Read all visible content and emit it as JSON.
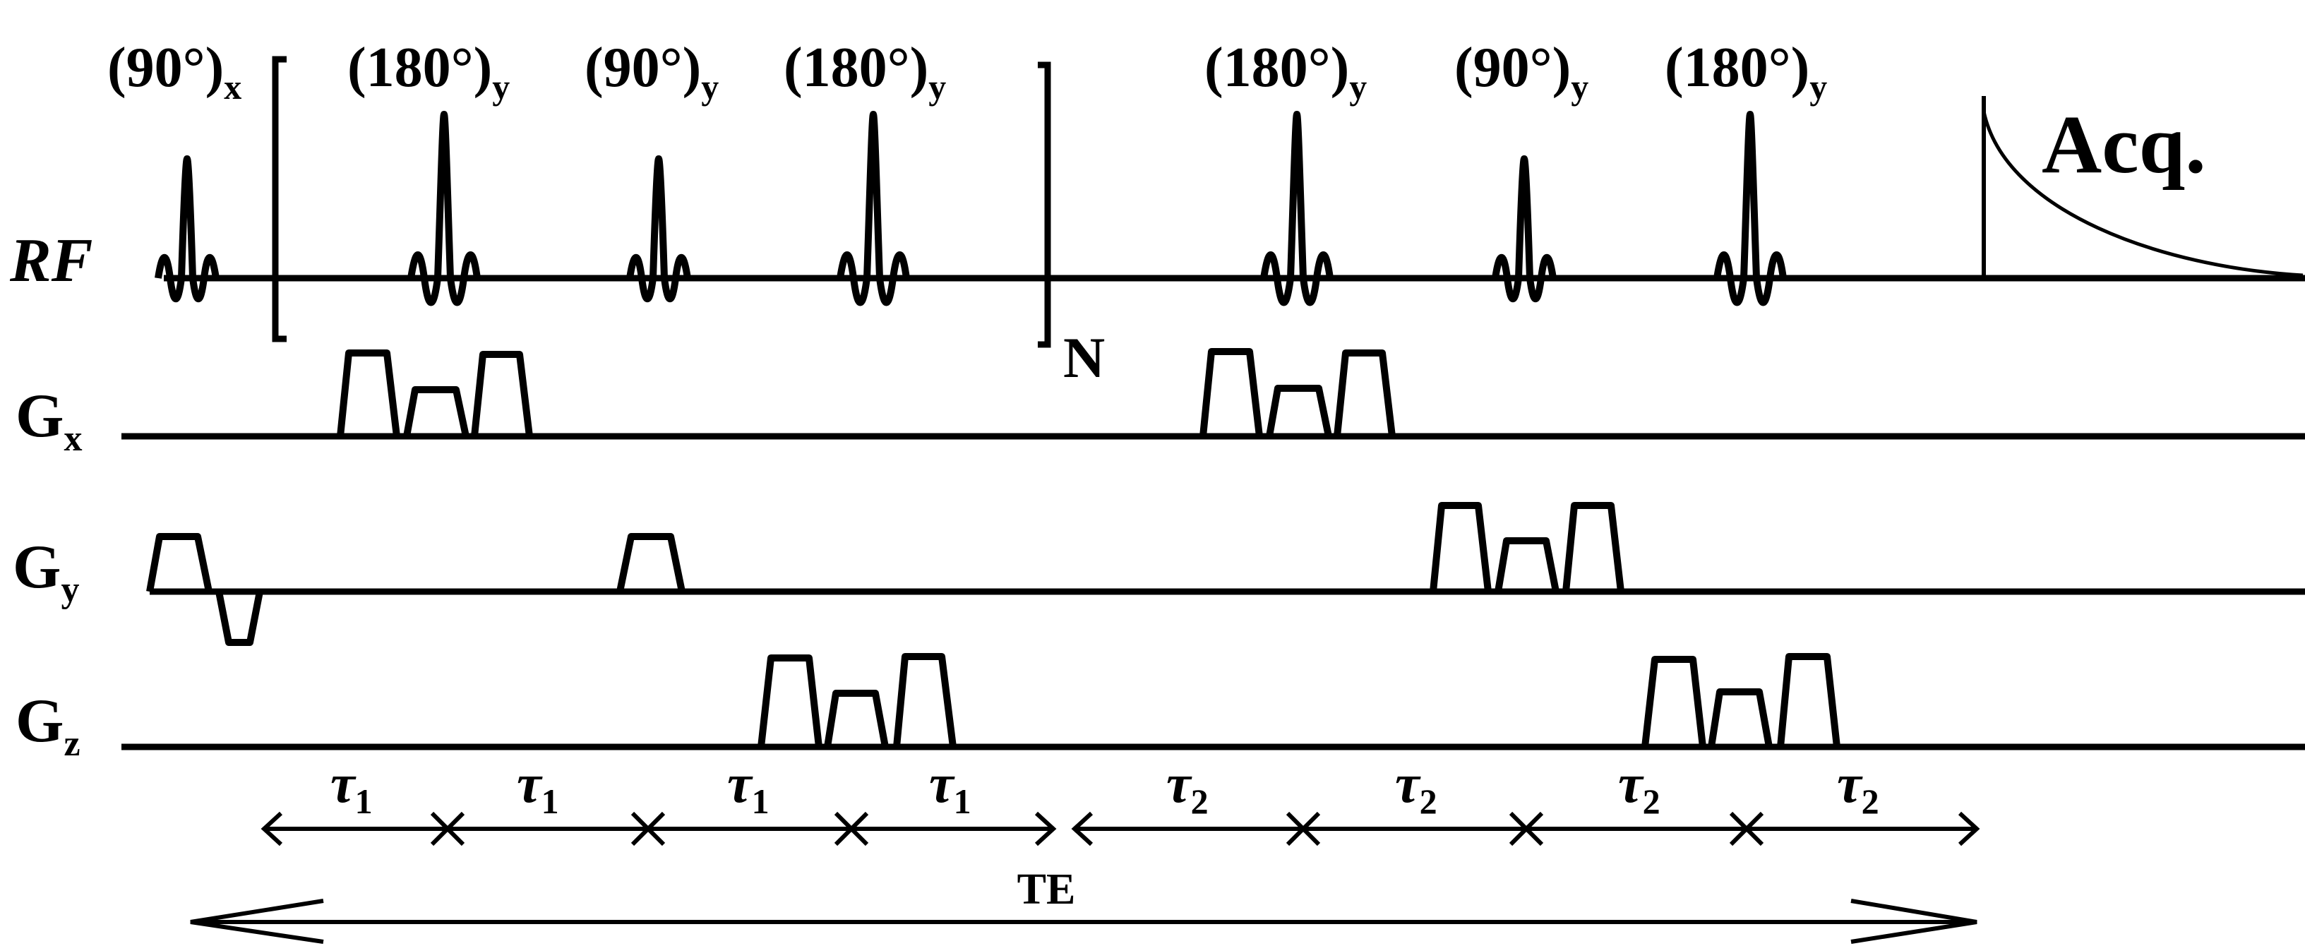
{
  "pulse_labels": [
    {
      "base": "(90°)",
      "sub": "x"
    },
    {
      "base": "(180°)",
      "sub": "y"
    },
    {
      "base": "(90°)",
      "sub": "y"
    },
    {
      "base": "(180°)",
      "sub": "y"
    },
    {
      "base": "(180°)",
      "sub": "y"
    },
    {
      "base": "(90°)",
      "sub": "y"
    },
    {
      "base": "(180°)",
      "sub": "y"
    }
  ],
  "channels": {
    "rf": "RF",
    "gx": {
      "base": "G",
      "sub": "x"
    },
    "gy": {
      "base": "G",
      "sub": "y"
    },
    "gz": {
      "base": "G",
      "sub": "z"
    }
  },
  "acquisition": "Acq.",
  "repeat": "N",
  "intervals": [
    {
      "base": "τ",
      "sub": "1"
    },
    {
      "base": "τ",
      "sub": "1"
    },
    {
      "base": "τ",
      "sub": "1"
    },
    {
      "base": "τ",
      "sub": "1"
    },
    {
      "base": "τ",
      "sub": "2"
    },
    {
      "base": "τ",
      "sub": "2"
    },
    {
      "base": "τ",
      "sub": "2"
    },
    {
      "base": "τ",
      "sub": "2"
    }
  ],
  "echo_time": "TE"
}
